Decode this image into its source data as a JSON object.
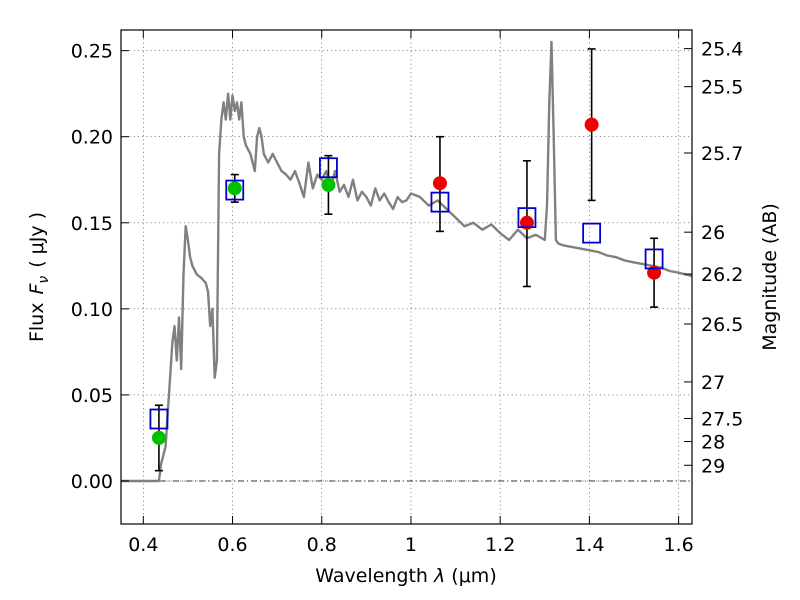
{
  "chart_data": {
    "type": "scatter",
    "title": "",
    "xlabel": "Wavelength  λ (μm)",
    "ylabel": "Flux  F_ν  ( μJy )",
    "ylabel_parts": {
      "flux": "Flux",
      "var": "F",
      "sub": "ν",
      "unit": "(  μJy )"
    },
    "xlabel_parts": {
      "text": "Wavelength  ",
      "var": "λ",
      "unit": " (μm)"
    },
    "y2label": "Magnitude (AB)",
    "xlim": [
      0.35,
      1.63
    ],
    "ylim": [
      -0.025,
      0.262
    ],
    "grid": true,
    "x_ticks": [
      0.4,
      0.6,
      0.8,
      1.0,
      1.2,
      1.4,
      1.6
    ],
    "x_tick_labels": [
      "0.4",
      "0.6",
      "0.8",
      "1",
      "1.2",
      "1.4",
      "1.6"
    ],
    "y_ticks": [
      0.0,
      0.05,
      0.1,
      0.15,
      0.2,
      0.25
    ],
    "y_tick_labels": [
      "0.00",
      "0.05",
      "0.10",
      "0.15",
      "0.20",
      "0.25"
    ],
    "y2_ticks": [
      {
        "mag": 25.4,
        "label": "25.4"
      },
      {
        "mag": 25.5,
        "label": "25.5"
      },
      {
        "mag": 25.7,
        "label": "25.7"
      },
      {
        "mag": 26.0,
        "label": "26"
      },
      {
        "mag": 26.2,
        "label": "26.2"
      },
      {
        "mag": 26.5,
        "label": "26.5"
      },
      {
        "mag": 27.0,
        "label": "27"
      },
      {
        "mag": 27.5,
        "label": "27.5"
      },
      {
        "mag": 28.0,
        "label": "28"
      },
      {
        "mag": 29.0,
        "label": "29"
      }
    ],
    "zero_line": 0.0,
    "series": [
      {
        "kind": "line",
        "color": "#808080",
        "x": [
          0.35,
          0.42,
          0.43,
          0.435,
          0.44,
          0.445,
          0.45,
          0.455,
          0.46,
          0.465,
          0.47,
          0.475,
          0.48,
          0.485,
          0.49,
          0.495,
          0.5,
          0.505,
          0.51,
          0.52,
          0.53,
          0.54,
          0.545,
          0.55,
          0.555,
          0.56,
          0.565,
          0.57,
          0.575,
          0.58,
          0.585,
          0.59,
          0.595,
          0.6,
          0.605,
          0.61,
          0.615,
          0.62,
          0.625,
          0.63,
          0.64,
          0.65,
          0.655,
          0.66,
          0.665,
          0.67,
          0.68,
          0.69,
          0.7,
          0.71,
          0.72,
          0.73,
          0.74,
          0.75,
          0.76,
          0.77,
          0.78,
          0.79,
          0.8,
          0.81,
          0.82,
          0.83,
          0.84,
          0.85,
          0.86,
          0.87,
          0.88,
          0.89,
          0.9,
          0.91,
          0.92,
          0.93,
          0.94,
          0.95,
          0.96,
          0.97,
          0.98,
          0.99,
          1.0,
          1.02,
          1.04,
          1.06,
          1.08,
          1.1,
          1.12,
          1.14,
          1.16,
          1.18,
          1.2,
          1.22,
          1.24,
          1.26,
          1.28,
          1.3,
          1.305,
          1.31,
          1.315,
          1.32,
          1.325,
          1.33,
          1.34,
          1.36,
          1.38,
          1.4,
          1.42,
          1.44,
          1.46,
          1.48,
          1.5,
          1.52,
          1.54,
          1.56,
          1.58,
          1.6,
          1.63
        ],
        "y": [
          0.0,
          0.0,
          0.0,
          0.0,
          0.01,
          0.015,
          0.02,
          0.04,
          0.06,
          0.08,
          0.09,
          0.07,
          0.095,
          0.065,
          0.12,
          0.148,
          0.14,
          0.13,
          0.125,
          0.12,
          0.118,
          0.115,
          0.11,
          0.09,
          0.1,
          0.06,
          0.07,
          0.19,
          0.21,
          0.22,
          0.21,
          0.225,
          0.21,
          0.224,
          0.215,
          0.22,
          0.21,
          0.22,
          0.2,
          0.195,
          0.19,
          0.18,
          0.2,
          0.205,
          0.2,
          0.19,
          0.185,
          0.19,
          0.185,
          0.18,
          0.178,
          0.175,
          0.18,
          0.173,
          0.165,
          0.185,
          0.17,
          0.178,
          0.175,
          0.18,
          0.17,
          0.18,
          0.168,
          0.172,
          0.165,
          0.175,
          0.163,
          0.168,
          0.165,
          0.16,
          0.17,
          0.163,
          0.167,
          0.162,
          0.158,
          0.165,
          0.162,
          0.163,
          0.167,
          0.165,
          0.16,
          0.163,
          0.158,
          0.153,
          0.148,
          0.15,
          0.146,
          0.149,
          0.144,
          0.14,
          0.146,
          0.141,
          0.143,
          0.14,
          0.16,
          0.22,
          0.255,
          0.2,
          0.14,
          0.138,
          0.137,
          0.136,
          0.135,
          0.134,
          0.133,
          0.131,
          0.13,
          0.128,
          0.127,
          0.126,
          0.125,
          0.124,
          0.122,
          0.121,
          0.119
        ]
      },
      {
        "kind": "points",
        "marker": "circle",
        "color": "#00c000",
        "x": [
          0.435,
          0.605,
          0.815
        ],
        "y": [
          0.025,
          0.17,
          0.172
        ],
        "yerr_low": [
          0.019,
          0.008,
          0.017
        ],
        "yerr_high": [
          0.019,
          0.008,
          0.017
        ]
      },
      {
        "kind": "points",
        "marker": "circle",
        "color": "#ee0000",
        "x": [
          1.065,
          1.26,
          1.405,
          1.545
        ],
        "y": [
          0.173,
          0.15,
          0.207,
          0.121
        ],
        "yerr_low": [
          0.028,
          0.037,
          0.044,
          0.02
        ],
        "yerr_high": [
          0.027,
          0.036,
          0.044,
          0.02
        ]
      },
      {
        "kind": "points",
        "marker": "open-square",
        "color": "#0000cc",
        "x": [
          0.435,
          0.605,
          0.815,
          1.065,
          1.26,
          1.405,
          1.545
        ],
        "y": [
          0.036,
          0.169,
          0.182,
          0.162,
          0.153,
          0.144,
          0.129
        ]
      }
    ],
    "error_bar_color": "#000000"
  }
}
